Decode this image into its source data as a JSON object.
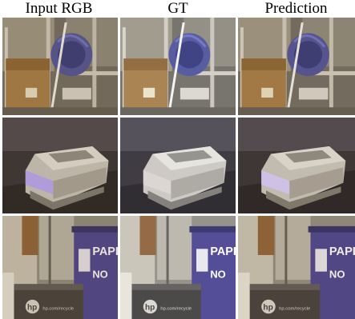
{
  "headers": [
    "Input RGB",
    "GT",
    "Prediction"
  ],
  "scene3_text": {
    "box_word": "PAPER",
    "no": "NO",
    "hp": "hp",
    "url": "hp.com/recycle"
  },
  "variants": [
    {
      "tint": "#8a6a3a",
      "tint_opacity": 0.18,
      "purple": "#b9a7ff"
    },
    {
      "tint": "#ffffff",
      "tint_opacity": 0.08,
      "purple": "#d9d3cf"
    },
    {
      "tint": "#9b7a45",
      "tint_opacity": 0.14,
      "purple": "#d8ccff"
    }
  ]
}
